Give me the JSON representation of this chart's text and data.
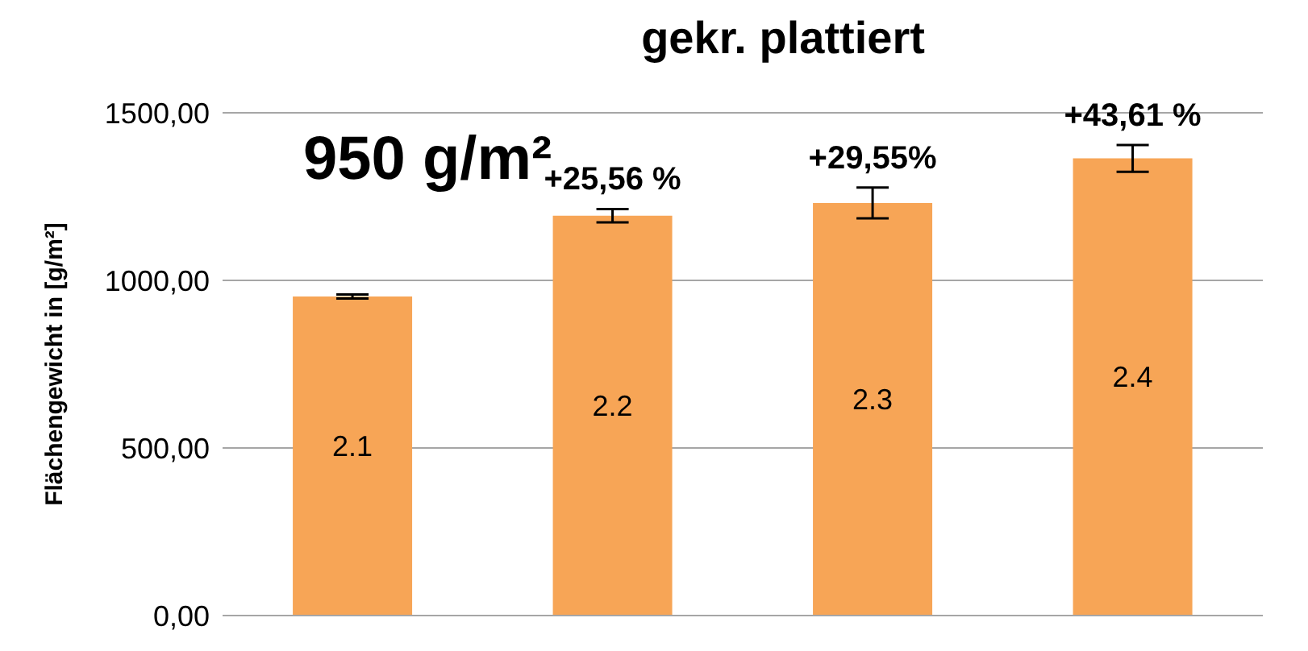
{
  "chart_data": {
    "type": "bar",
    "title": "gekr. plattiert",
    "ylabel": "Flächengewicht in [g/m²]",
    "categories": [
      "2.1",
      "2.2",
      "2.3",
      "2.4"
    ],
    "values": [
      952,
      1193,
      1231,
      1364
    ],
    "errors": [
      6,
      20,
      46,
      40
    ],
    "color": "#f7a556",
    "ylim": [
      0,
      1500
    ],
    "yticks": [
      {
        "value": 0,
        "label": "0,00"
      },
      {
        "value": 500,
        "label": "500,00"
      },
      {
        "value": 1000,
        "label": "1000,00"
      },
      {
        "value": 1500,
        "label": "1500,00"
      }
    ],
    "grid": "y",
    "annotations": [
      "950 g/m²",
      {
        "text": "+25,56 %",
        "x": "2.2",
        "y": 1193
      },
      {
        "text": "+29,55%",
        "x": "2.3",
        "y": 1231
      },
      {
        "text": "+43,61 %",
        "x": "2.4",
        "y": 1364
      }
    ]
  }
}
